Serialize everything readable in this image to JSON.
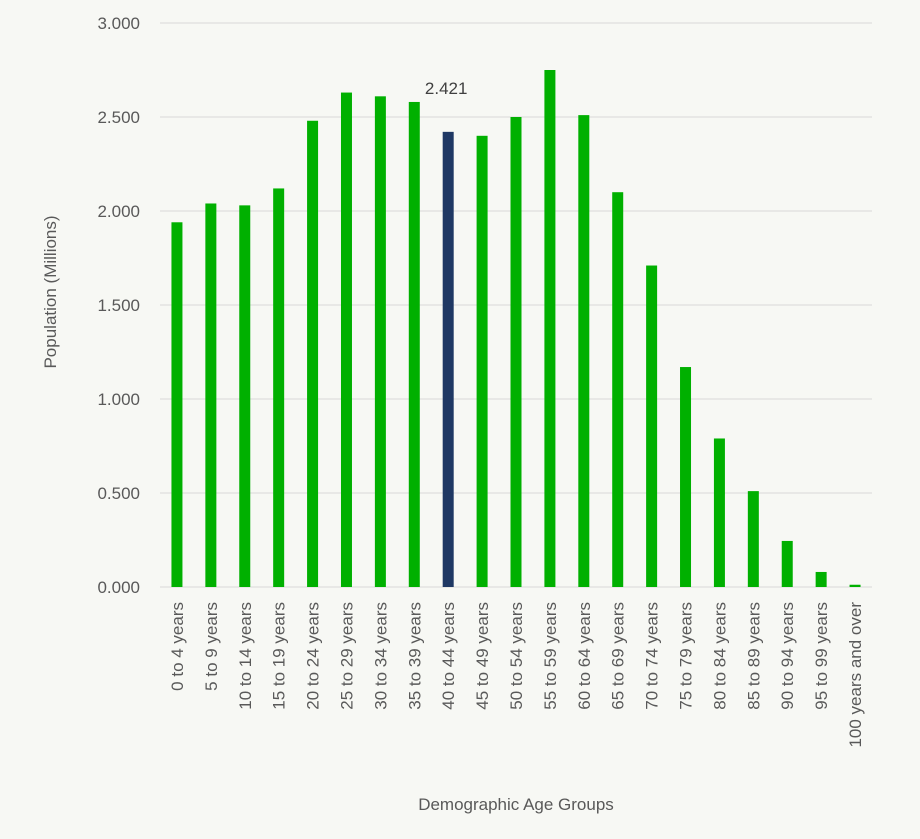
{
  "chart_data": {
    "type": "bar",
    "title": "",
    "xlabel": "Demographic Age Groups",
    "ylabel": "Population (Millions)",
    "ylim": [
      0,
      3
    ],
    "yticks": [
      "0.000",
      "0.500",
      "1.000",
      "1.500",
      "2.000",
      "2.500",
      "3.000"
    ],
    "grid": "horizontal",
    "categories": [
      "0 to 4 years",
      "5 to 9 years",
      "10 to 14 years",
      "15 to 19 years",
      "20 to 24 years",
      "25 to 29 years",
      "30 to 34 years",
      "35 to 39 years",
      "40 to 44 years",
      "45 to 49 years",
      "50 to 54 years",
      "55 to 59 years",
      "60 to 64 years",
      "65 to 69 years",
      "70 to 74 years",
      "75 to 79 years",
      "80 to 84 years",
      "85 to 89 years",
      "90 to 94 years",
      "95 to 99 years",
      "100 years and over"
    ],
    "values": [
      1.94,
      2.04,
      2.03,
      2.12,
      2.48,
      2.63,
      2.61,
      2.58,
      2.421,
      2.4,
      2.5,
      2.75,
      2.51,
      2.1,
      1.71,
      1.17,
      0.79,
      0.51,
      0.245,
      0.08,
      0.012
    ],
    "highlight_index": 8,
    "data_label": "2.421",
    "colors": {
      "bar": "#00b000",
      "highlight": "#1f3864",
      "grid": "#d9d9d9",
      "text": "#595959"
    }
  }
}
